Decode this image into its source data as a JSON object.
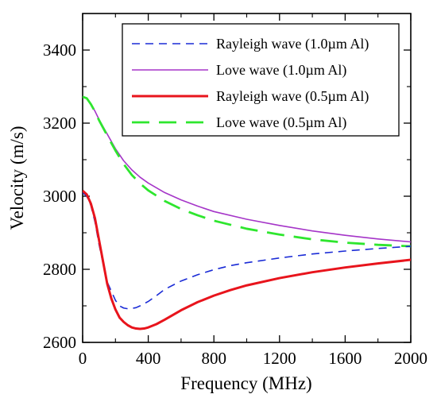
{
  "chart_data": {
    "type": "line",
    "title": "",
    "xlabel": "Frequency (MHz)",
    "ylabel": "Velocity (m/s)",
    "xlim": [
      0,
      2000
    ],
    "ylim": [
      2600,
      3500
    ],
    "xticks": [
      0,
      400,
      800,
      1200,
      1600,
      2000
    ],
    "yticks": [
      2600,
      2800,
      3000,
      3200,
      3400
    ],
    "xtick_labels": [
      "0",
      "400",
      "800",
      "1200",
      "1600",
      "2000"
    ],
    "ytick_labels": [
      "2600",
      "2800",
      "3000",
      "3200",
      "3400"
    ],
    "grid": false,
    "legend_position": "top-right",
    "series": [
      {
        "name": "Rayleigh wave (1.0µm Al)",
        "color": "#1a2bd6",
        "dash": "dashed",
        "x": [
          0,
          25,
          50,
          75,
          100,
          125,
          150,
          175,
          200,
          225,
          250,
          275,
          300,
          325,
          350,
          400,
          450,
          500,
          600,
          700,
          800,
          900,
          1000,
          1200,
          1400,
          1600,
          1800,
          2000
        ],
        "y": [
          3010,
          3000,
          2975,
          2930,
          2868,
          2815,
          2765,
          2740,
          2715,
          2700,
          2694,
          2692,
          2693,
          2695,
          2700,
          2712,
          2728,
          2745,
          2768,
          2785,
          2799,
          2810,
          2818,
          2831,
          2842,
          2850,
          2857,
          2863
        ]
      },
      {
        "name": "Love wave (1.0µm Al)",
        "color": "#a535c8",
        "dash": "solid",
        "x": [
          0,
          25,
          50,
          75,
          100,
          150,
          200,
          250,
          300,
          350,
          400,
          500,
          600,
          700,
          800,
          1000,
          1200,
          1400,
          1600,
          1800,
          2000
        ],
        "y": [
          3272,
          3268,
          3252,
          3233,
          3210,
          3170,
          3130,
          3097,
          3072,
          3052,
          3036,
          3010,
          2990,
          2973,
          2958,
          2937,
          2920,
          2905,
          2893,
          2883,
          2875
        ]
      },
      {
        "name": "Rayleigh wave (0.5µm Al)",
        "color": "#e8141c",
        "dash": "solid",
        "x": [
          0,
          25,
          50,
          75,
          100,
          125,
          150,
          175,
          200,
          225,
          250,
          275,
          300,
          325,
          350,
          375,
          400,
          450,
          500,
          600,
          700,
          800,
          900,
          1000,
          1200,
          1400,
          1600,
          1800,
          2000
        ],
        "y": [
          3015,
          3005,
          2980,
          2940,
          2880,
          2820,
          2760,
          2720,
          2690,
          2668,
          2656,
          2647,
          2641,
          2638,
          2637,
          2638,
          2641,
          2650,
          2662,
          2688,
          2710,
          2728,
          2743,
          2756,
          2776,
          2792,
          2805,
          2816,
          2826
        ]
      },
      {
        "name": "Love wave (0.5µm Al)",
        "color": "#2ee62e",
        "dash": "longdash",
        "x": [
          0,
          25,
          50,
          75,
          100,
          150,
          200,
          250,
          300,
          350,
          400,
          500,
          600,
          700,
          800,
          1000,
          1200,
          1400,
          1600,
          1800,
          2000
        ],
        "y": [
          3272,
          3268,
          3252,
          3232,
          3208,
          3166,
          3125,
          3088,
          3058,
          3035,
          3016,
          2987,
          2965,
          2948,
          2933,
          2911,
          2895,
          2882,
          2873,
          2867,
          2863
        ]
      }
    ]
  }
}
